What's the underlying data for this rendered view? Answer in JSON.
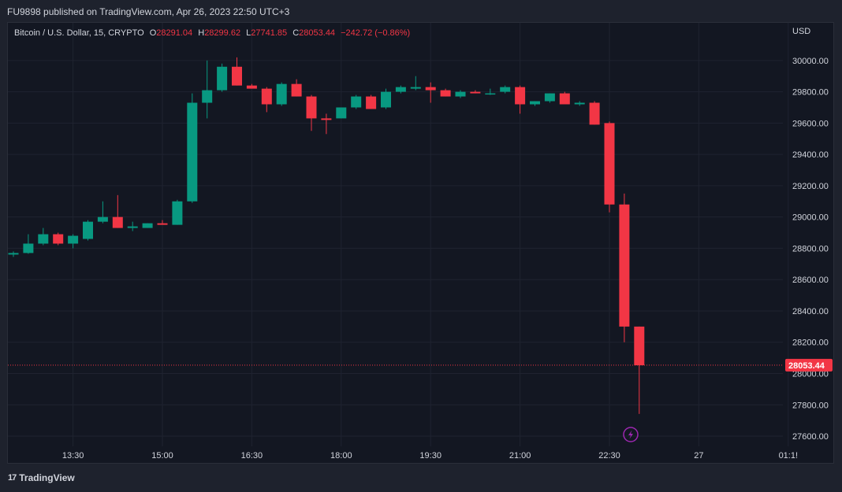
{
  "header": {
    "published": "FU9898 published on TradingView.com, Apr 26, 2023 22:50 UTC+3"
  },
  "footer": {
    "brand": "TradingView",
    "logo": "17"
  },
  "colors": {
    "up": "#089981",
    "down": "#f23645",
    "bg": "#131722",
    "grid": "#1f2330",
    "text": "#d1d4dc",
    "flash": "#9c27b0"
  },
  "chart_data": {
    "type": "candlestick",
    "symbol": "Bitcoin / U.S. Dollar, 15, CRYPTO",
    "ohlc_labels": {
      "o_label": "O",
      "o": "28291.04",
      "h_label": "H",
      "h": "28299.62",
      "l_label": "L",
      "l": "27741.85",
      "c_label": "C",
      "c": "28053.44",
      "change": "−242.72 (−0.86%)"
    },
    "currency": "USD",
    "last_price": 28053.44,
    "last_price_label": "28053.44",
    "ylim": [
      27560,
      30150
    ],
    "y_ticks": [
      "27600.00",
      "27800.00",
      "28000.00",
      "28200.00",
      "28400.00",
      "28600.00",
      "28800.00",
      "29000.00",
      "29200.00",
      "29400.00",
      "29600.00",
      "29800.00",
      "30000.00"
    ],
    "x_ticks": [
      {
        "label": "13:30",
        "index": 4
      },
      {
        "label": "15:00",
        "index": 10
      },
      {
        "label": "16:30",
        "index": 16
      },
      {
        "label": "18:00",
        "index": 22
      },
      {
        "label": "19:30",
        "index": 28
      },
      {
        "label": "21:00",
        "index": 34
      },
      {
        "label": "22:30",
        "index": 40
      },
      {
        "label": "27",
        "index": 46
      },
      {
        "label": "01:1!",
        "index": 52
      }
    ],
    "candles": [
      {
        "o": 28760,
        "h": 28780,
        "l": 28745,
        "c": 28770
      },
      {
        "o": 28770,
        "h": 28890,
        "l": 28765,
        "c": 28830
      },
      {
        "o": 28830,
        "h": 28930,
        "l": 28820,
        "c": 28890
      },
      {
        "o": 28890,
        "h": 28900,
        "l": 28820,
        "c": 28830
      },
      {
        "o": 28830,
        "h": 28890,
        "l": 28800,
        "c": 28880
      },
      {
        "o": 28860,
        "h": 28980,
        "l": 28850,
        "c": 28970
      },
      {
        "o": 28970,
        "h": 29100,
        "l": 28960,
        "c": 29000
      },
      {
        "o": 29000,
        "h": 29140,
        "l": 28930,
        "c": 28930
      },
      {
        "o": 28930,
        "h": 28970,
        "l": 28910,
        "c": 28940
      },
      {
        "o": 28930,
        "h": 28960,
        "l": 28930,
        "c": 28960
      },
      {
        "o": 28960,
        "h": 28980,
        "l": 28950,
        "c": 28950
      },
      {
        "o": 28950,
        "h": 29110,
        "l": 28950,
        "c": 29100
      },
      {
        "o": 29100,
        "h": 29790,
        "l": 29090,
        "c": 29730
      },
      {
        "o": 29730,
        "h": 30000,
        "l": 29630,
        "c": 29810
      },
      {
        "o": 29810,
        "h": 29980,
        "l": 29800,
        "c": 29960
      },
      {
        "o": 29960,
        "h": 30020,
        "l": 29840,
        "c": 29840
      },
      {
        "o": 29840,
        "h": 29850,
        "l": 29820,
        "c": 29820
      },
      {
        "o": 29820,
        "h": 29830,
        "l": 29670,
        "c": 29720
      },
      {
        "o": 29720,
        "h": 29860,
        "l": 29710,
        "c": 29850
      },
      {
        "o": 29850,
        "h": 29880,
        "l": 29770,
        "c": 29770
      },
      {
        "o": 29770,
        "h": 29780,
        "l": 29550,
        "c": 29630
      },
      {
        "o": 29630,
        "h": 29660,
        "l": 29530,
        "c": 29620
      },
      {
        "o": 29630,
        "h": 29700,
        "l": 29630,
        "c": 29700
      },
      {
        "o": 29700,
        "h": 29780,
        "l": 29690,
        "c": 29770
      },
      {
        "o": 29770,
        "h": 29780,
        "l": 29690,
        "c": 29690
      },
      {
        "o": 29700,
        "h": 29820,
        "l": 29690,
        "c": 29800
      },
      {
        "o": 29800,
        "h": 29840,
        "l": 29790,
        "c": 29830
      },
      {
        "o": 29820,
        "h": 29900,
        "l": 29810,
        "c": 29830
      },
      {
        "o": 29830,
        "h": 29860,
        "l": 29730,
        "c": 29810
      },
      {
        "o": 29810,
        "h": 29820,
        "l": 29770,
        "c": 29770
      },
      {
        "o": 29770,
        "h": 29810,
        "l": 29760,
        "c": 29800
      },
      {
        "o": 29800,
        "h": 29810,
        "l": 29790,
        "c": 29790
      },
      {
        "o": 29790,
        "h": 29820,
        "l": 29780,
        "c": 29790
      },
      {
        "o": 29800,
        "h": 29840,
        "l": 29790,
        "c": 29830
      },
      {
        "o": 29830,
        "h": 29840,
        "l": 29660,
        "c": 29720
      },
      {
        "o": 29720,
        "h": 29740,
        "l": 29710,
        "c": 29740
      },
      {
        "o": 29740,
        "h": 29790,
        "l": 29730,
        "c": 29790
      },
      {
        "o": 29790,
        "h": 29800,
        "l": 29720,
        "c": 29720
      },
      {
        "o": 29720,
        "h": 29740,
        "l": 29710,
        "c": 29730
      },
      {
        "o": 29730,
        "h": 29740,
        "l": 29590,
        "c": 29590
      },
      {
        "o": 29600,
        "h": 29610,
        "l": 29030,
        "c": 29080
      },
      {
        "o": 29080,
        "h": 29150,
        "l": 28200,
        "c": 28300
      },
      {
        "o": 28300,
        "h": 28300,
        "l": 27742,
        "c": 28053
      }
    ]
  }
}
